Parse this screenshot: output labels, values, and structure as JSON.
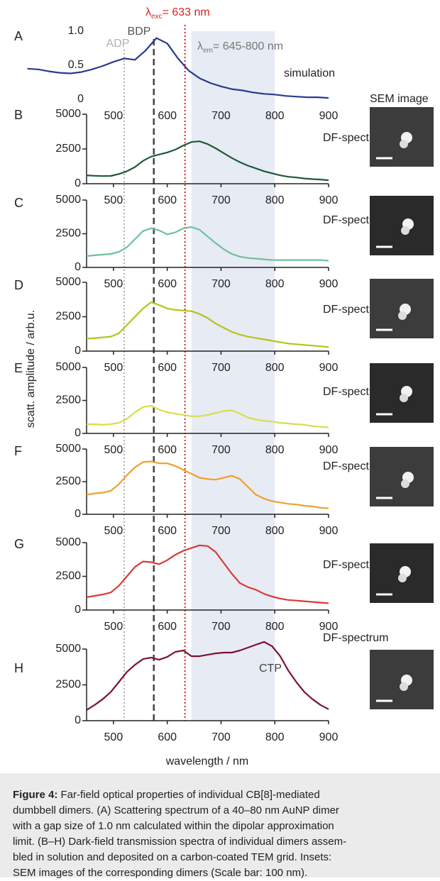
{
  "figure": {
    "ylabel": "scatt. amplitude / arb.u.",
    "sem_title": "SEM image"
  },
  "reference_lines": [
    {
      "label": "ADP",
      "x": 520,
      "color": "#b0b0b0",
      "style": "dotted"
    },
    {
      "label": "BDP",
      "x": 575,
      "color": "#444444",
      "style": "dashed"
    },
    {
      "symbol": "λ",
      "sub": "exc",
      "text": "= 633 nm",
      "x": 633,
      "color": "#e02020",
      "style": "dotted"
    }
  ],
  "band": {
    "symbol": "λ",
    "sub": "em",
    "text": "= 645-800 nm",
    "range": [
      645,
      800
    ],
    "color": "#e7ebf4"
  },
  "chart_data": [
    {
      "type": "line",
      "label": "A",
      "annotations": [
        "simulation"
      ],
      "color": "#2a3a90",
      "axis_lines": false,
      "x": [
        340,
        360,
        380,
        400,
        420,
        440,
        460,
        480,
        500,
        520,
        540,
        560,
        580,
        600,
        620,
        640,
        660,
        680,
        700,
        720,
        740,
        760,
        780,
        800,
        820,
        840,
        860,
        880,
        900
      ],
      "values": [
        0.45,
        0.44,
        0.41,
        0.39,
        0.38,
        0.4,
        0.44,
        0.49,
        0.55,
        0.6,
        0.58,
        0.72,
        0.9,
        0.82,
        0.6,
        0.42,
        0.31,
        0.24,
        0.19,
        0.15,
        0.13,
        0.1,
        0.08,
        0.07,
        0.05,
        0.04,
        0.03,
        0.03,
        0.02
      ],
      "xlim": [
        340,
        900
      ],
      "xticks": [
        500,
        600,
        700,
        800,
        900
      ],
      "ylim": [
        0,
        1
      ],
      "yticks": [
        0,
        0.5,
        {
          "value": 1,
          "label": "1.0"
        }
      ]
    },
    {
      "type": "line",
      "label": "B",
      "annotations": [
        "DF-spectrum"
      ],
      "color": "#1d5a38",
      "x": [
        450,
        465,
        480,
        495,
        510,
        525,
        540,
        555,
        570,
        585,
        600,
        615,
        630,
        645,
        660,
        675,
        690,
        705,
        720,
        735,
        750,
        765,
        780,
        795,
        810,
        825,
        840,
        855,
        870,
        885,
        900
      ],
      "values": [
        600,
        570,
        550,
        560,
        700,
        900,
        1200,
        1650,
        1950,
        2100,
        2250,
        2450,
        2750,
        3000,
        3050,
        2850,
        2550,
        2200,
        1850,
        1550,
        1300,
        1100,
        900,
        750,
        600,
        500,
        450,
        380,
        330,
        300,
        250
      ],
      "xlim": [
        450,
        900
      ],
      "xticks": [
        500,
        600,
        700,
        800,
        900
      ],
      "ylim": [
        0,
        5000
      ],
      "yticks": [
        0,
        2500,
        5000
      ]
    },
    {
      "type": "line",
      "label": "C",
      "annotations": [
        "DF-spectrum"
      ],
      "color": "#6cc29a",
      "x": [
        450,
        465,
        480,
        495,
        510,
        525,
        540,
        555,
        570,
        585,
        600,
        615,
        630,
        645,
        660,
        675,
        690,
        705,
        720,
        735,
        750,
        765,
        780,
        795,
        810,
        825,
        840,
        855,
        870,
        885,
        900
      ],
      "values": [
        850,
        900,
        950,
        1000,
        1150,
        1500,
        2100,
        2700,
        2900,
        2750,
        2450,
        2600,
        2900,
        3000,
        2800,
        2300,
        1800,
        1350,
        1000,
        800,
        700,
        650,
        600,
        550,
        550,
        550,
        550,
        550,
        550,
        550,
        500
      ],
      "xlim": [
        450,
        900
      ],
      "xticks": [
        500,
        600,
        700,
        800,
        900
      ],
      "ylim": [
        0,
        5000
      ],
      "yticks": [
        0,
        2500,
        5000
      ]
    },
    {
      "type": "line",
      "label": "D",
      "annotations": [
        "DF-spectrum"
      ],
      "color": "#b4c41a",
      "x": [
        450,
        465,
        480,
        495,
        510,
        525,
        540,
        555,
        570,
        585,
        600,
        615,
        630,
        645,
        660,
        675,
        690,
        705,
        720,
        735,
        750,
        765,
        780,
        795,
        810,
        825,
        840,
        855,
        870,
        885,
        900
      ],
      "values": [
        900,
        950,
        1000,
        1050,
        1300,
        1900,
        2500,
        3100,
        3550,
        3350,
        3100,
        3000,
        2950,
        2900,
        2700,
        2400,
        2000,
        1700,
        1400,
        1200,
        1050,
        950,
        850,
        750,
        650,
        550,
        500,
        450,
        400,
        350,
        300
      ],
      "xlim": [
        450,
        900
      ],
      "xticks": [
        500,
        600,
        700,
        800,
        900
      ],
      "ylim": [
        0,
        5000
      ],
      "yticks": [
        0,
        2500,
        5000
      ]
    },
    {
      "type": "line",
      "label": "E",
      "annotations": [
        "DF-spectrum"
      ],
      "color": "#d6e04a",
      "x": [
        450,
        465,
        480,
        495,
        510,
        525,
        540,
        555,
        570,
        585,
        600,
        615,
        630,
        645,
        660,
        675,
        690,
        705,
        720,
        735,
        750,
        765,
        780,
        795,
        810,
        825,
        840,
        855,
        870,
        885,
        900
      ],
      "values": [
        700,
        700,
        650,
        700,
        800,
        1100,
        1600,
        2000,
        2100,
        1800,
        1600,
        1500,
        1400,
        1300,
        1300,
        1400,
        1550,
        1700,
        1750,
        1500,
        1200,
        1050,
        950,
        900,
        800,
        750,
        700,
        650,
        550,
        500,
        450
      ],
      "xlim": [
        450,
        900
      ],
      "xticks": [
        500,
        600,
        700,
        800,
        900
      ],
      "ylim": [
        0,
        5000
      ],
      "yticks": [
        0,
        2500,
        5000
      ]
    },
    {
      "type": "line",
      "label": "F",
      "annotations": [
        "DF-spectrum"
      ],
      "color": "#f0a028",
      "x": [
        450,
        465,
        480,
        495,
        510,
        525,
        540,
        555,
        570,
        585,
        600,
        615,
        630,
        645,
        660,
        675,
        690,
        705,
        720,
        735,
        750,
        765,
        780,
        795,
        810,
        825,
        840,
        855,
        870,
        885,
        900
      ],
      "values": [
        1500,
        1600,
        1650,
        1800,
        2300,
        3000,
        3600,
        4000,
        4050,
        3900,
        3900,
        3700,
        3400,
        3100,
        2800,
        2700,
        2650,
        2800,
        2950,
        2700,
        2100,
        1500,
        1200,
        1000,
        900,
        800,
        750,
        650,
        600,
        500,
        450
      ],
      "xlim": [
        450,
        900
      ],
      "xticks": [
        500,
        600,
        700,
        800,
        900
      ],
      "ylim": [
        0,
        5000
      ],
      "yticks": [
        0,
        2500,
        5000
      ]
    },
    {
      "type": "line",
      "label": "G",
      "annotations": [
        "DF-spectrum"
      ],
      "color": "#d83a3a",
      "x": [
        450,
        465,
        480,
        495,
        510,
        525,
        540,
        555,
        570,
        585,
        600,
        615,
        630,
        645,
        660,
        675,
        690,
        705,
        720,
        735,
        750,
        765,
        780,
        795,
        810,
        825,
        840,
        855,
        870,
        885,
        900
      ],
      "values": [
        950,
        1050,
        1150,
        1300,
        1800,
        2500,
        3200,
        3600,
        3550,
        3400,
        3700,
        4100,
        4400,
        4600,
        4800,
        4750,
        4300,
        3500,
        2700,
        2000,
        1700,
        1500,
        1200,
        1000,
        850,
        750,
        700,
        650,
        600,
        550,
        500
      ],
      "xlim": [
        450,
        900
      ],
      "xticks": [
        500,
        600,
        700,
        800,
        900
      ],
      "ylim": [
        0,
        5000
      ],
      "yticks": [
        0,
        2500,
        5000
      ]
    },
    {
      "type": "line",
      "label": "H",
      "annotations": [
        "DF-spectrum",
        "CTP"
      ],
      "color": "#7c1232",
      "xlabel": "wavelength / nm",
      "x": [
        450,
        465,
        480,
        495,
        510,
        525,
        540,
        555,
        570,
        585,
        600,
        615,
        630,
        645,
        660,
        675,
        690,
        705,
        720,
        735,
        750,
        765,
        780,
        795,
        810,
        825,
        840,
        855,
        870,
        885,
        900
      ],
      "values": [
        750,
        1100,
        1500,
        2000,
        2700,
        3400,
        3900,
        4300,
        4400,
        4250,
        4450,
        4800,
        4900,
        4500,
        4500,
        4600,
        4700,
        4750,
        4750,
        4900,
        5100,
        5300,
        5500,
        5200,
        4500,
        3500,
        2700,
        2000,
        1500,
        1100,
        800
      ],
      "xlim": [
        450,
        900
      ],
      "xticks": [
        500,
        600,
        700,
        800,
        900
      ],
      "ylim": [
        0,
        5000
      ],
      "yticks": [
        0,
        2500,
        5000
      ]
    }
  ],
  "caption": {
    "label": "Figure 4:",
    "lines": [
      " Far-field optical properties of individual CB[8]-mediated",
      "dumbbell dimers. (A) Scattering spectrum of a 40–80 nm AuNP dimer",
      "with a gap size of 1.0 nm calculated within the dipolar approximation",
      "limit. (B–H) Dark-field transmission spectra of individual dimers assem-",
      "bled in solution and deposited on a carbon-coated TEM grid. Insets:",
      "SEM images of the corresponding dimers (Scale bar: 100 nm)."
    ]
  }
}
